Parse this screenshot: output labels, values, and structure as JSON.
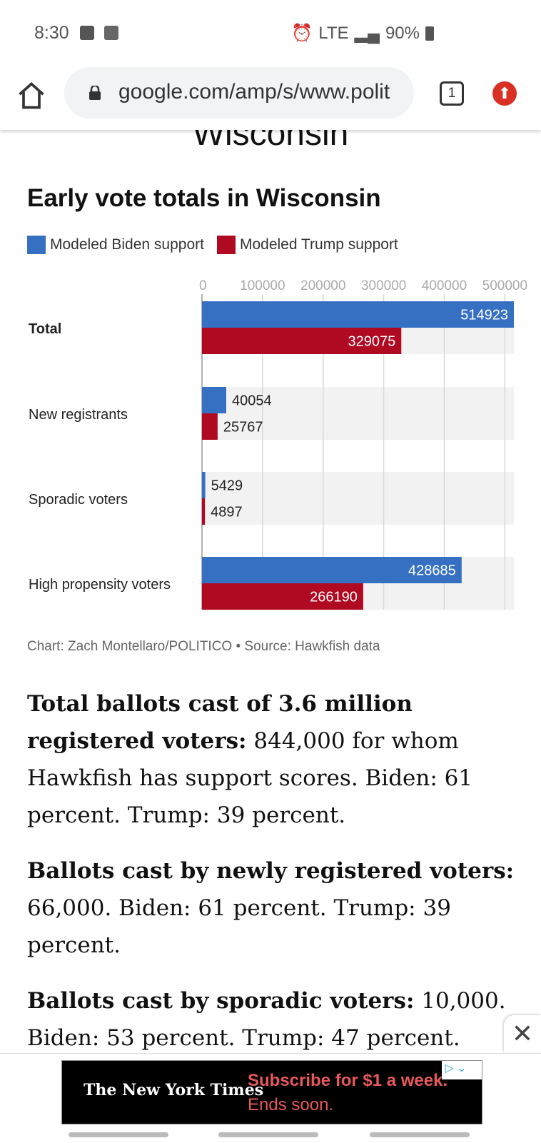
{
  "status_bar": {
    "time": "8:30",
    "network": "LTE",
    "battery": "90%"
  },
  "browser": {
    "url": "google.com/amp/s/www.polit",
    "tab_count": "1"
  },
  "page": {
    "heading_fragment": "Wisconsin"
  },
  "chart_data": {
    "type": "bar",
    "orientation": "horizontal",
    "title": "Early vote totals in Wisconsin",
    "categories": [
      "Total",
      "New registrants",
      "Sporadic voters",
      "High propensity voters"
    ],
    "series": [
      {
        "name": "Modeled Biden support",
        "color": "#3670c2",
        "values": [
          514923,
          40054,
          5429,
          428685
        ]
      },
      {
        "name": "Modeled Trump support",
        "color": "#b00a23",
        "values": [
          329075,
          25767,
          4897,
          266190
        ]
      }
    ],
    "xticks": [
      "0",
      "100000",
      "200000",
      "300000",
      "400000",
      "500000"
    ],
    "xlim": [
      0,
      514923
    ],
    "grid": true,
    "legend": "top-left",
    "credit": "Chart: Zach Montellaro/POLITICO • Source: Hawkfish data"
  },
  "article": {
    "p1_bold": "Total ballots cast of 3.6 million registered voters:",
    "p1_text": " 844,000 for whom Hawkfish has support scores. Biden: 61 percent. Trump: 39 percent.",
    "p2_bold": "Ballots cast by newly registered voters:",
    "p2_text": " 66,000. Biden: 61 percent. Trump: 39 percent.",
    "p3_bold": "Ballots cast by sporadic voters:",
    "p3_text": " 10,000. Biden: 53 percent. Trump: 47 percent."
  },
  "ad": {
    "brand": "The New York Times",
    "headline": "Subscribe for $1 a week.",
    "subline": "Ends soon."
  }
}
